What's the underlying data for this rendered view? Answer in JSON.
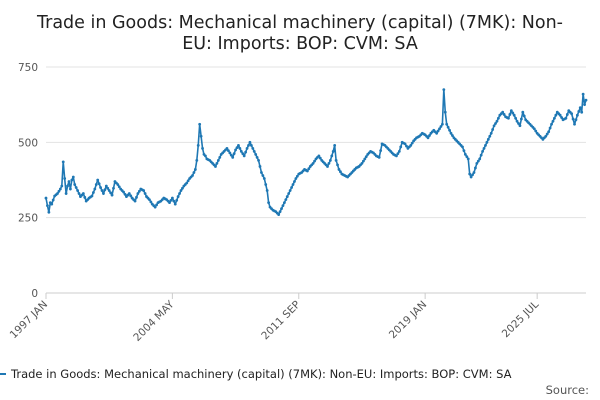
{
  "chart_data": {
    "type": "line",
    "title_lines": [
      "Trade in Goods: Mechanical machinery (capital) (7MK): Non-",
      "EU: Imports: BOP: CVM: SA"
    ],
    "x_tick_labels": [
      "1997 JAN",
      "2004 MAY",
      "2011 SEP",
      "2019 JAN",
      "2025 JUL"
    ],
    "x_tick_positions": [
      0,
      88,
      176,
      264,
      342
    ],
    "ylim": [
      0,
      750
    ],
    "y_ticks": [
      0,
      250,
      500,
      750
    ],
    "grid": true,
    "legend_position": "bottom",
    "series": [
      {
        "name": "Trade in Goods: Mechanical machinery (capital) (7MK): Non-EU: Imports: BOP: CVM: SA",
        "color": "#1f78b4",
        "start": "1997 JAN",
        "frequency": "monthly",
        "anchors": [
          [
            0,
            315
          ],
          [
            1,
            290
          ],
          [
            2,
            268
          ],
          [
            3,
            300
          ],
          [
            4,
            295
          ],
          [
            6,
            322
          ],
          [
            8,
            330
          ],
          [
            10,
            345
          ],
          [
            11,
            355
          ],
          [
            12,
            435
          ],
          [
            13,
            380
          ],
          [
            14,
            330
          ],
          [
            15,
            355
          ],
          [
            16,
            370
          ],
          [
            17,
            345
          ],
          [
            18,
            375
          ],
          [
            19,
            385
          ],
          [
            20,
            360
          ],
          [
            22,
            340
          ],
          [
            24,
            320
          ],
          [
            26,
            330
          ],
          [
            28,
            305
          ],
          [
            30,
            315
          ],
          [
            32,
            322
          ],
          [
            34,
            345
          ],
          [
            36,
            375
          ],
          [
            38,
            350
          ],
          [
            40,
            330
          ],
          [
            42,
            355
          ],
          [
            44,
            340
          ],
          [
            46,
            325
          ],
          [
            48,
            370
          ],
          [
            50,
            360
          ],
          [
            52,
            345
          ],
          [
            54,
            335
          ],
          [
            56,
            320
          ],
          [
            58,
            330
          ],
          [
            60,
            315
          ],
          [
            62,
            305
          ],
          [
            64,
            330
          ],
          [
            66,
            345
          ],
          [
            68,
            340
          ],
          [
            70,
            320
          ],
          [
            72,
            310
          ],
          [
            74,
            295
          ],
          [
            76,
            285
          ],
          [
            78,
            300
          ],
          [
            80,
            305
          ],
          [
            82,
            315
          ],
          [
            84,
            310
          ],
          [
            86,
            300
          ],
          [
            88,
            315
          ],
          [
            90,
            295
          ],
          [
            92,
            320
          ],
          [
            94,
            340
          ],
          [
            96,
            355
          ],
          [
            98,
            365
          ],
          [
            100,
            380
          ],
          [
            102,
            390
          ],
          [
            103,
            400
          ],
          [
            104,
            410
          ],
          [
            105,
            440
          ],
          [
            106,
            490
          ],
          [
            107,
            560
          ],
          [
            108,
            520
          ],
          [
            109,
            480
          ],
          [
            110,
            460
          ],
          [
            111,
            455
          ],
          [
            112,
            445
          ],
          [
            114,
            440
          ],
          [
            116,
            430
          ],
          [
            118,
            420
          ],
          [
            120,
            440
          ],
          [
            122,
            460
          ],
          [
            124,
            470
          ],
          [
            126,
            480
          ],
          [
            128,
            465
          ],
          [
            130,
            450
          ],
          [
            132,
            475
          ],
          [
            134,
            490
          ],
          [
            136,
            470
          ],
          [
            138,
            455
          ],
          [
            140,
            480
          ],
          [
            142,
            500
          ],
          [
            144,
            480
          ],
          [
            146,
            460
          ],
          [
            148,
            440
          ],
          [
            150,
            400
          ],
          [
            152,
            380
          ],
          [
            154,
            340
          ],
          [
            155,
            300
          ],
          [
            156,
            285
          ],
          [
            158,
            275
          ],
          [
            160,
            270
          ],
          [
            162,
            260
          ],
          [
            164,
            280
          ],
          [
            166,
            300
          ],
          [
            168,
            320
          ],
          [
            170,
            340
          ],
          [
            172,
            360
          ],
          [
            174,
            380
          ],
          [
            176,
            395
          ],
          [
            178,
            400
          ],
          [
            180,
            410
          ],
          [
            182,
            405
          ],
          [
            184,
            420
          ],
          [
            186,
            430
          ],
          [
            188,
            445
          ],
          [
            190,
            455
          ],
          [
            192,
            440
          ],
          [
            194,
            430
          ],
          [
            196,
            420
          ],
          [
            198,
            440
          ],
          [
            200,
            470
          ],
          [
            201,
            490
          ],
          [
            202,
            440
          ],
          [
            204,
            410
          ],
          [
            206,
            395
          ],
          [
            208,
            390
          ],
          [
            210,
            385
          ],
          [
            212,
            395
          ],
          [
            214,
            405
          ],
          [
            216,
            415
          ],
          [
            218,
            420
          ],
          [
            220,
            430
          ],
          [
            222,
            445
          ],
          [
            224,
            460
          ],
          [
            226,
            470
          ],
          [
            228,
            465
          ],
          [
            230,
            455
          ],
          [
            232,
            450
          ],
          [
            234,
            495
          ],
          [
            236,
            490
          ],
          [
            238,
            480
          ],
          [
            240,
            470
          ],
          [
            242,
            460
          ],
          [
            244,
            455
          ],
          [
            246,
            470
          ],
          [
            248,
            500
          ],
          [
            250,
            495
          ],
          [
            252,
            480
          ],
          [
            254,
            490
          ],
          [
            256,
            505
          ],
          [
            258,
            515
          ],
          [
            260,
            520
          ],
          [
            262,
            530
          ],
          [
            264,
            525
          ],
          [
            266,
            515
          ],
          [
            268,
            530
          ],
          [
            270,
            540
          ],
          [
            272,
            530
          ],
          [
            274,
            545
          ],
          [
            276,
            560
          ],
          [
            277,
            675
          ],
          [
            278,
            600
          ],
          [
            279,
            560
          ],
          [
            280,
            550
          ],
          [
            282,
            530
          ],
          [
            284,
            515
          ],
          [
            286,
            505
          ],
          [
            288,
            495
          ],
          [
            290,
            485
          ],
          [
            292,
            460
          ],
          [
            294,
            445
          ],
          [
            295,
            395
          ],
          [
            296,
            385
          ],
          [
            298,
            400
          ],
          [
            300,
            430
          ],
          [
            302,
            445
          ],
          [
            304,
            470
          ],
          [
            306,
            490
          ],
          [
            308,
            510
          ],
          [
            310,
            530
          ],
          [
            312,
            555
          ],
          [
            314,
            570
          ],
          [
            316,
            590
          ],
          [
            318,
            600
          ],
          [
            320,
            585
          ],
          [
            322,
            580
          ],
          [
            324,
            605
          ],
          [
            326,
            590
          ],
          [
            328,
            570
          ],
          [
            330,
            555
          ],
          [
            332,
            600
          ],
          [
            334,
            575
          ],
          [
            336,
            565
          ],
          [
            338,
            555
          ],
          [
            340,
            545
          ],
          [
            342,
            530
          ],
          [
            344,
            520
          ],
          [
            346,
            510
          ],
          [
            348,
            520
          ],
          [
            350,
            535
          ],
          [
            352,
            560
          ],
          [
            354,
            580
          ],
          [
            356,
            600
          ],
          [
            358,
            590
          ],
          [
            360,
            575
          ],
          [
            362,
            580
          ],
          [
            364,
            605
          ],
          [
            366,
            595
          ],
          [
            368,
            560
          ],
          [
            370,
            590
          ],
          [
            372,
            615
          ],
          [
            373,
            600
          ],
          [
            374,
            660
          ],
          [
            375,
            625
          ],
          [
            376,
            640
          ]
        ]
      }
    ],
    "source_label": "Source:"
  }
}
